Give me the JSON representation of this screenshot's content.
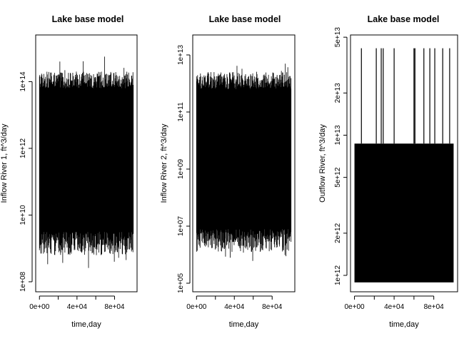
{
  "chart_data": [
    {
      "type": "line",
      "title": "Lake base model",
      "xlabel": "time,day",
      "ylabel": "Inflow River 1, ft^3/day",
      "y_scale": "log",
      "xlim": [
        -4000,
        104000
      ],
      "ylim_log10": [
        7.7,
        15.4
      ],
      "x_ticks": [
        "0e+00",
        "4e+04",
        "8e+04"
      ],
      "x_tick_values": [
        0,
        40000,
        80000
      ],
      "y_ticks": [
        "1e+08",
        "1e+10",
        "1e+12",
        "1e+14"
      ],
      "y_tick_values_log10": [
        8,
        10,
        12,
        14
      ],
      "series": [
        {
          "values_summary": {
            "n_days": 100000,
            "x_start": 0,
            "x_end": 100000,
            "dense_band_log10": [
              9.9,
              13.3
            ],
            "typical_high_log10": [
              13.8,
              14.3
            ],
            "typical_low_log10": [
              8.8,
              9.5
            ],
            "max_log10": 15.0,
            "min_log10": 8.2
          }
        }
      ]
    },
    {
      "type": "line",
      "title": "Lake base model",
      "xlabel": "time,day",
      "ylabel": "Inflow River 2, ft^3/day",
      "y_scale": "log",
      "xlim": [
        -4000,
        104000
      ],
      "ylim_log10": [
        4.7,
        13.7
      ],
      "x_ticks": [
        "0e+00",
        "4e+04",
        "8e+04"
      ],
      "x_tick_values": [
        0,
        40000,
        80000
      ],
      "y_ticks": [
        "1e+05",
        "1e+07",
        "1e+09",
        "1e+11",
        "1e+13"
      ],
      "y_tick_values_log10": [
        5,
        7,
        9,
        11,
        13
      ],
      "series": [
        {
          "values_summary": {
            "n_days": 100000,
            "x_start": 0,
            "x_end": 100000,
            "dense_band_log10": [
              7.3,
              11.3
            ],
            "typical_high_log10": [
              11.8,
              12.4
            ],
            "typical_low_log10": [
              6.1,
              6.9
            ],
            "max_log10": 13.2,
            "min_log10": 5.6
          }
        }
      ]
    },
    {
      "type": "line",
      "title": "Lake base model",
      "xlabel": "time,day",
      "ylabel": "Outflow River, ft^3/day",
      "y_scale": "log",
      "xlim": [
        -4000,
        104000
      ],
      "ylim_log10": [
        11.883,
        13.715
      ],
      "x_ticks": [
        "0e+00",
        "4e+04",
        "8e+04"
      ],
      "x_tick_values": [
        0,
        40000,
        80000
      ],
      "y_ticks": [
        "1e+12",
        "2e+12",
        "5e+12",
        "1e+13",
        "2e+13",
        "5e+13"
      ],
      "y_tick_values_log10": [
        12,
        12.301,
        12.699,
        13,
        13.301,
        13.699
      ],
      "series": [
        {
          "values_summary": {
            "n_days": 100000,
            "x_start": 0,
            "x_end": 100000,
            "band_log10": [
              11.95,
              12.94
            ],
            "spike_peak_log10": 13.62,
            "spike_days": [
              7000,
              22000,
              27000,
              29000,
              40000,
              60000,
              61000,
              70000,
              76000,
              81000,
              89000,
              96000
            ]
          }
        }
      ]
    }
  ]
}
